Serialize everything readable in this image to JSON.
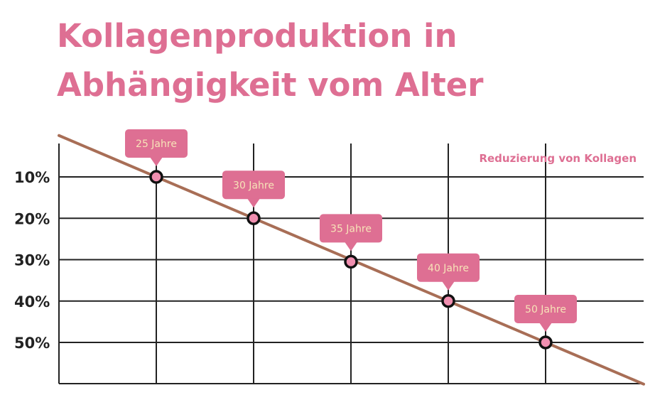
{
  "title_lines": [
    "Kollagenproduktion in",
    "Abhängigkeit vom Alter"
  ],
  "colors": {
    "title": "#de6f93",
    "tag": "#de6f93",
    "tag_text": "#f7e4b8",
    "line": "#a86e56",
    "grid": "#222222",
    "marker_fill": "#f08fb0",
    "legend": "#de6f93"
  },
  "chart_data": {
    "type": "line",
    "title": "Kollagenproduktion in Abhängigkeit vom Alter",
    "legend": "Reduzierung von Kollagen",
    "legend_position": "top-right",
    "grid": true,
    "y_tick_labels": [
      "10%",
      "20%",
      "30%",
      "40%",
      "50%"
    ],
    "y_ticks": [
      10,
      20,
      30,
      40,
      50
    ],
    "y_inverted": true,
    "points": [
      {
        "label": "25 Jahre",
        "y": 10
      },
      {
        "label": "30 Jahre",
        "y": 20
      },
      {
        "label": "35 Jahre",
        "y": 30.5
      },
      {
        "label": "40 Jahre",
        "y": 40
      },
      {
        "label": "50 Jahre",
        "y": 50
      }
    ]
  }
}
